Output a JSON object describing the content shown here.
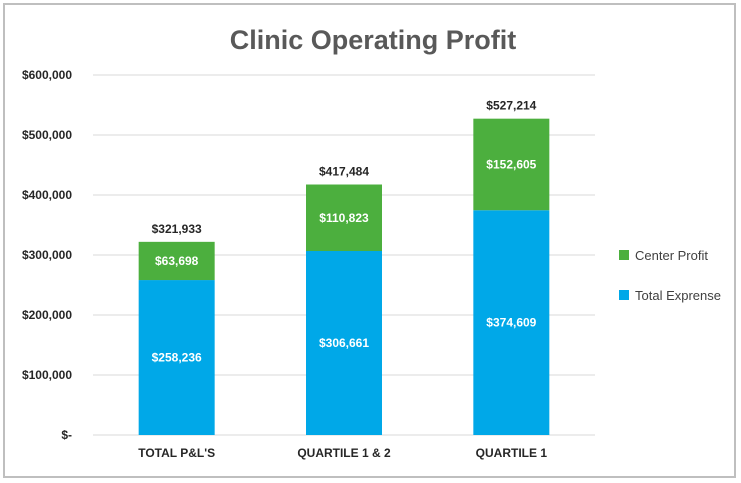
{
  "chart_data": {
    "type": "bar",
    "stacked": true,
    "title": "Clinic Operating Profit",
    "categories": [
      "TOTAL P&L'S",
      "QUARTILE 1 & 2",
      "QUARTILE 1"
    ],
    "series": [
      {
        "name": "Total Exprense",
        "color": "#00a8e8",
        "values": [
          258236,
          306661,
          374609
        ],
        "labels": [
          "$258,236",
          "$306,661",
          "$374,609"
        ]
      },
      {
        "name": "Center Profit",
        "color": "#4caf3e",
        "values": [
          63698,
          110823,
          152605
        ],
        "labels": [
          "$63,698",
          "$110,823",
          "$152,605"
        ]
      }
    ],
    "totals": [
      321933,
      417484,
      527214
    ],
    "total_labels": [
      "$321,933",
      "$417,484",
      "$527,214"
    ],
    "ylim": [
      0,
      600000
    ],
    "yticks": [
      0,
      100000,
      200000,
      300000,
      400000,
      500000,
      600000
    ],
    "ytick_labels": [
      "$-",
      "$100,000",
      "$200,000",
      "$300,000",
      "$400,000",
      "$500,000",
      "$600,000"
    ],
    "grid": true,
    "legend_position": "right",
    "legend": [
      {
        "name": "Center Profit",
        "color": "#4caf3e"
      },
      {
        "name": "Total Exprense",
        "color": "#00a8e8"
      }
    ]
  }
}
